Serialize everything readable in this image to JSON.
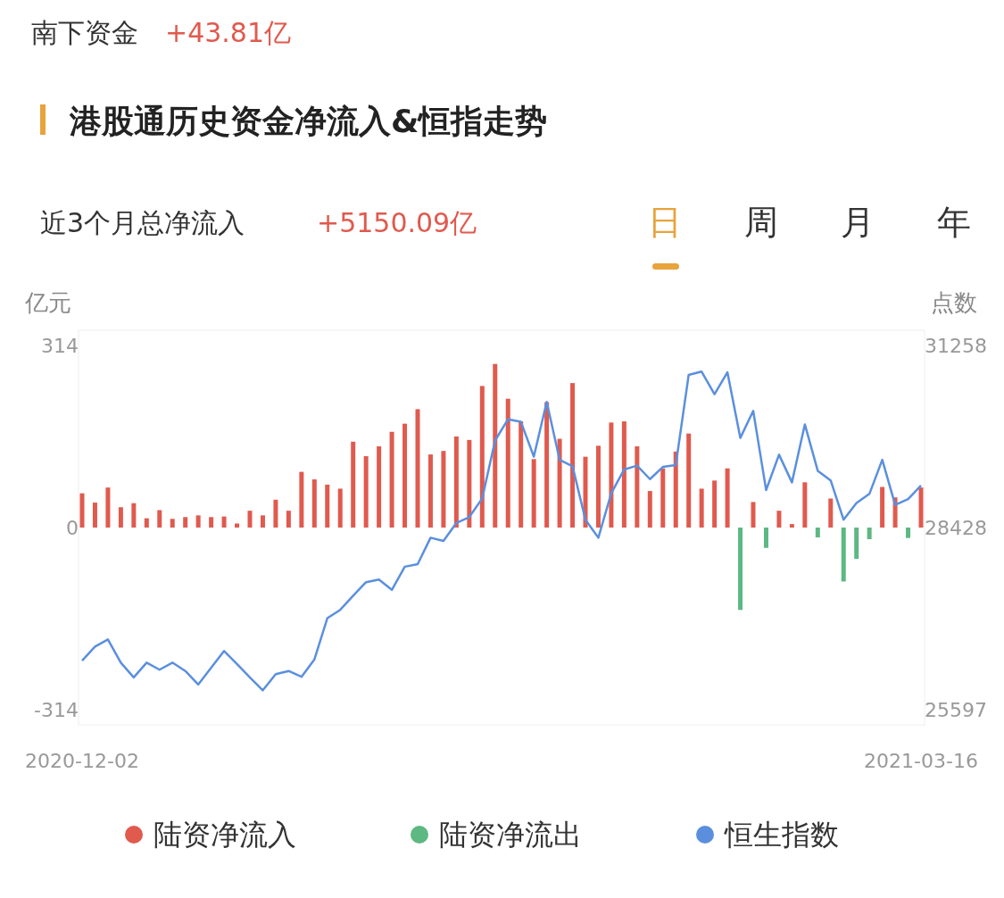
{
  "chart_data": {
    "type": "bar",
    "title": "港股通历史资金净流入&恒指走势",
    "subtitle": "近3个月总净流入",
    "ylabel": "亿元",
    "y2label": "点数",
    "annotations": [
      "南下资金",
      "+43.81亿",
      "+5150.09亿",
      "日",
      "周",
      "月",
      "年"
    ],
    "categories": [
      "2020-12-02",
      null,
      null,
      null,
      null,
      null,
      null,
      null,
      null,
      null,
      null,
      null,
      null,
      null,
      null,
      null,
      null,
      null,
      null,
      null,
      null,
      null,
      null,
      null,
      null,
      null,
      null,
      null,
      null,
      null,
      null,
      null,
      null,
      null,
      null,
      null,
      null,
      null,
      null,
      null,
      null,
      null,
      null,
      null,
      null,
      null,
      null,
      null,
      null,
      null,
      null,
      null,
      null,
      null,
      null,
      null,
      null,
      null,
      null,
      null,
      null,
      null,
      null,
      null,
      null,
      "2021-03-16"
    ],
    "ylim": [
      -340,
      340
    ],
    "yticks": [
      -314,
      0,
      314
    ],
    "y2lim": [
      25364,
      31492
    ],
    "y2ticks": [
      25597,
      28428,
      31258
    ],
    "legend": "bottom",
    "series": [
      {
        "name": "陆资净流入",
        "color": "#e05a4e",
        "values": [
          59,
          43,
          69,
          35,
          42,
          16,
          30,
          15,
          18,
          21,
          18,
          19,
          7,
          29,
          21,
          48,
          29,
          96,
          83,
          74,
          67,
          148,
          123,
          140,
          165,
          179,
          204,
          126,
          132,
          157,
          151,
          244,
          282,
          222,
          183,
          118,
          216,
          153,
          249,
          122,
          141,
          181,
          183,
          140,
          63,
          102,
          131,
          162,
          67,
          81,
          102,
          null,
          44,
          null,
          29,
          6,
          78,
          null,
          50,
          null,
          null,
          null,
          70,
          52,
          null,
          69
        ]
      },
      {
        "name": "陆资净流出",
        "color": "#5db882",
        "values": [
          null,
          null,
          null,
          null,
          null,
          null,
          null,
          null,
          null,
          null,
          null,
          null,
          null,
          null,
          null,
          null,
          null,
          null,
          null,
          null,
          null,
          null,
          null,
          null,
          null,
          null,
          null,
          null,
          null,
          null,
          null,
          null,
          null,
          null,
          null,
          null,
          null,
          null,
          null,
          null,
          null,
          null,
          null,
          null,
          null,
          null,
          null,
          null,
          null,
          null,
          null,
          -142,
          null,
          -35,
          null,
          null,
          null,
          -17,
          null,
          -93,
          -54,
          -20,
          null,
          null,
          -18,
          null
        ]
      },
      {
        "name": "恒生指数",
        "type": "line",
        "axis": "y2",
        "color": "#5b8fde",
        "values": [
          26360,
          26580,
          26690,
          26330,
          26100,
          26330,
          26220,
          26330,
          26200,
          25990,
          26250,
          26510,
          26310,
          26100,
          25900,
          26150,
          26200,
          26110,
          26380,
          27020,
          27150,
          27370,
          27580,
          27620,
          27460,
          27820,
          27860,
          28270,
          28220,
          28500,
          28590,
          28880,
          29780,
          30110,
          30070,
          29530,
          30380,
          29480,
          29380,
          28550,
          28270,
          28960,
          29330,
          29390,
          29180,
          29370,
          29400,
          30800,
          30850,
          30500,
          30840,
          29820,
          30240,
          29010,
          29560,
          29130,
          30030,
          29310,
          29160,
          28550,
          28810,
          28950,
          29480,
          28780,
          28870,
          29080
        ]
      }
    ]
  }
}
